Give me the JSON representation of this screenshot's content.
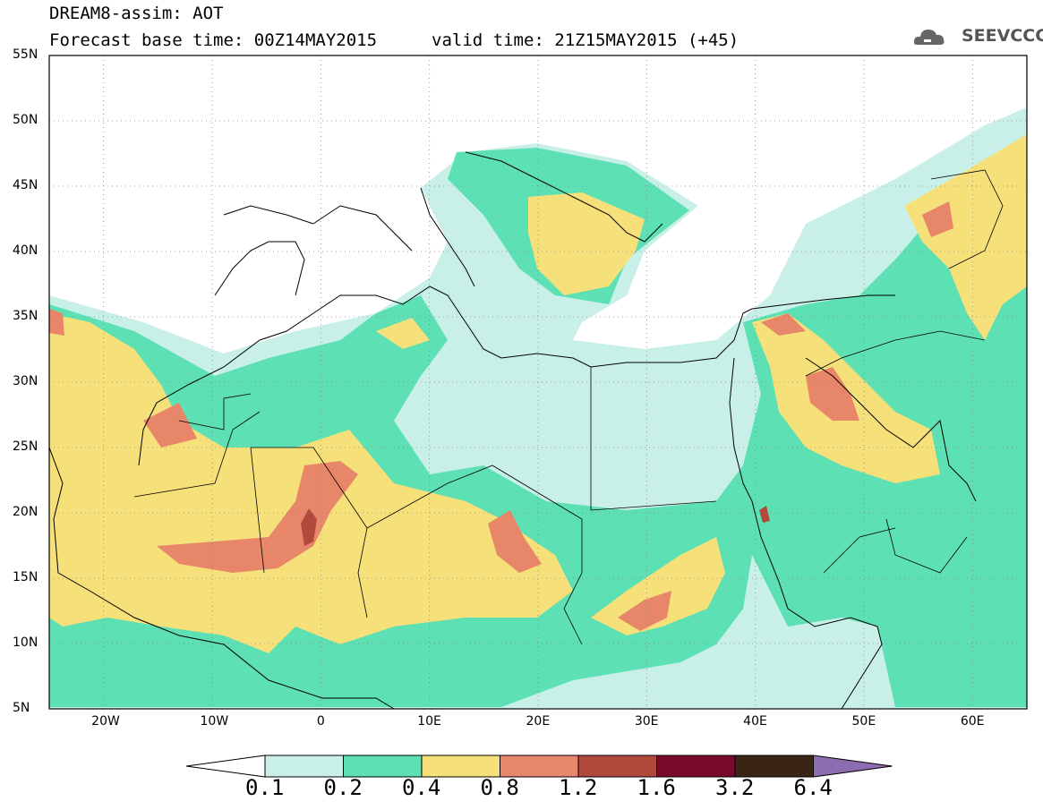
{
  "title": {
    "line1": "DREAM8-assim: AOT",
    "line2": "Forecast base time: 00Z14MAY2015",
    "valid": "valid time: 21Z15MAY2015 (+45)"
  },
  "logo": {
    "text": "SEEVCCC",
    "icon": "cloud-icon"
  },
  "map": {
    "lon_range": [
      -25,
      65
    ],
    "lat_range": [
      5,
      55
    ],
    "lat_ticks": [
      "55N",
      "50N",
      "45N",
      "40N",
      "35N",
      "30N",
      "25N",
      "20N",
      "15N",
      "10N",
      "5N"
    ],
    "lon_ticks": [
      "20W",
      "10W",
      "0",
      "10E",
      "20E",
      "30E",
      "40E",
      "50E",
      "60E"
    ],
    "grid": "dotted"
  },
  "colorbar": {
    "labels": [
      "0.1",
      "0.2",
      "0.4",
      "0.8",
      "1.2",
      "1.6",
      "3.2",
      "6.4"
    ],
    "colors": [
      "#c8f0e8",
      "#5ce0b4",
      "#f6e07a",
      "#e8866a",
      "#b24a3c",
      "#7a0a2a",
      "#3a2414",
      "#8e6cb0"
    ]
  }
}
